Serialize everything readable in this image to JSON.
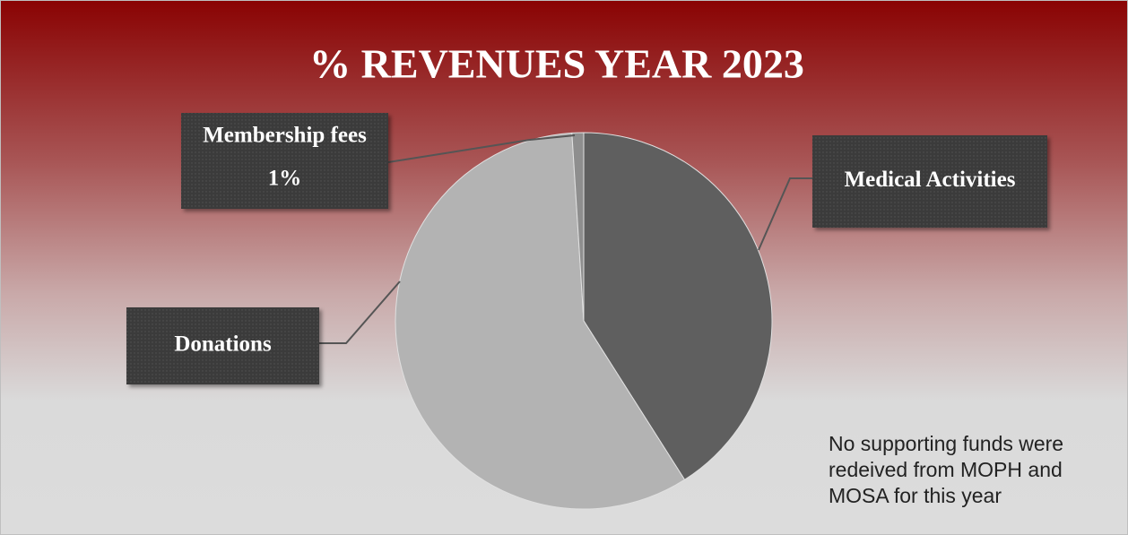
{
  "chart_data": {
    "type": "pie",
    "title": "% REVENUES YEAR 2023",
    "categories": [
      "Medical Activities",
      "Donations",
      "Membership fees"
    ],
    "values": [
      41,
      58,
      1
    ],
    "value_labels": [
      null,
      null,
      "1%"
    ],
    "colors": [
      "#5f5f5f",
      "#b3b3b3",
      "#8e8e8e"
    ],
    "annotation": "No supporting funds were redeived from MOPH and MOSA for this year"
  }
}
